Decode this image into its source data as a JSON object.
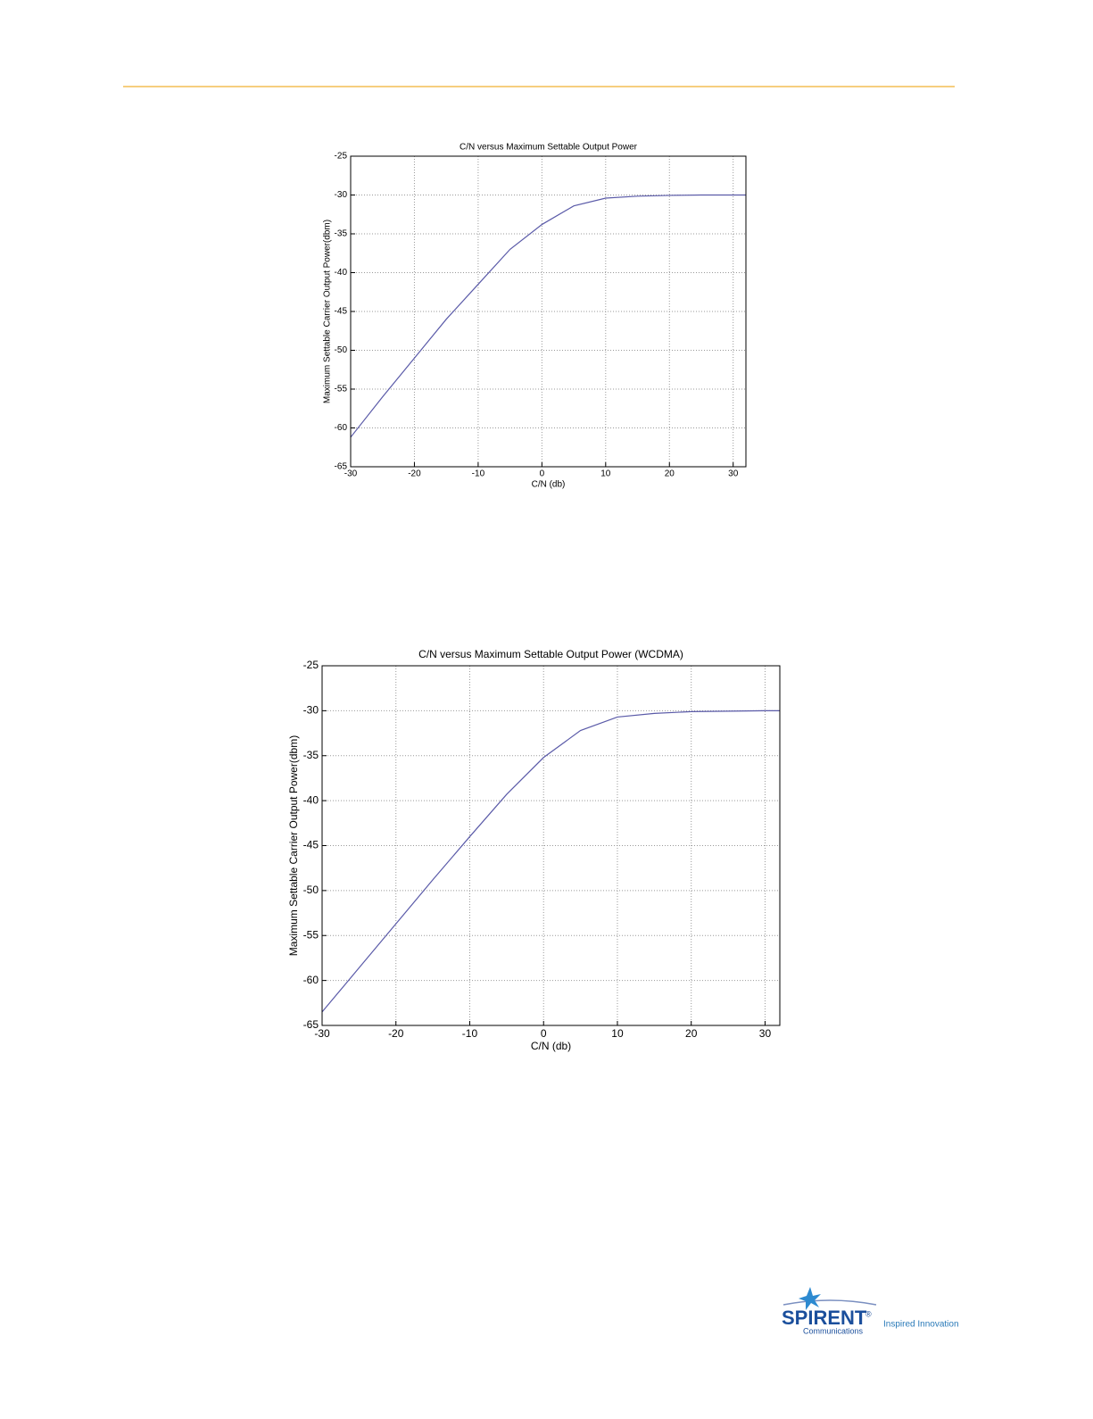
{
  "chart_data": [
    {
      "type": "line",
      "title": "C/N versus Maximum Settable Output Power",
      "x_label": "C/N (db)",
      "y_label": "Maximum Settable Carrier Output Power(dbm)",
      "x": [
        -30,
        -25,
        -20,
        -15,
        -10,
        -5,
        0,
        5,
        10,
        15,
        20,
        25,
        30,
        32
      ],
      "series": [
        {
          "color": "#5a5aa8",
          "values": [
            -61.2,
            -56,
            -51,
            -46,
            -41.5,
            -37,
            -33.8,
            -31.4,
            -30.4,
            -30.15,
            -30.05,
            -30,
            -30,
            -30
          ]
        }
      ],
      "xlim": [
        -30,
        32
      ],
      "ylim": [
        -65,
        -25
      ],
      "xticks": [
        -30,
        -20,
        -10,
        0,
        10,
        20,
        30
      ],
      "yticks": [
        -65,
        -60,
        -55,
        -50,
        -45,
        -40,
        -35,
        -30,
        -25
      ],
      "grid": true
    },
    {
      "type": "line",
      "title": "C/N versus Maximum Settable Output Power (WCDMA)",
      "x_label": "C/N (db)",
      "y_label": "Maximum Settable Carrier Output Power(dbm)",
      "x": [
        -30,
        -25,
        -20,
        -15,
        -10,
        -5,
        0,
        5,
        10,
        15,
        20,
        25,
        30,
        32
      ],
      "series": [
        {
          "color": "#5a5aa8",
          "values": [
            -63.5,
            -58.6,
            -53.7,
            -48.8,
            -44,
            -39.3,
            -35.2,
            -32.2,
            -30.7,
            -30.3,
            -30.1,
            -30.05,
            -30,
            -30
          ]
        }
      ],
      "xlim": [
        -30,
        32
      ],
      "ylim": [
        -65,
        -25
      ],
      "xticks": [
        -30,
        -20,
        -10,
        0,
        10,
        20,
        30
      ],
      "yticks": [
        -65,
        -60,
        -55,
        -50,
        -45,
        -40,
        -35,
        -30,
        -25
      ],
      "grid": true
    }
  ],
  "footer": {
    "logo": "SPIRENT",
    "registered": "®",
    "logo_sub": "Communications",
    "tagline": "Inspired Innovation"
  }
}
